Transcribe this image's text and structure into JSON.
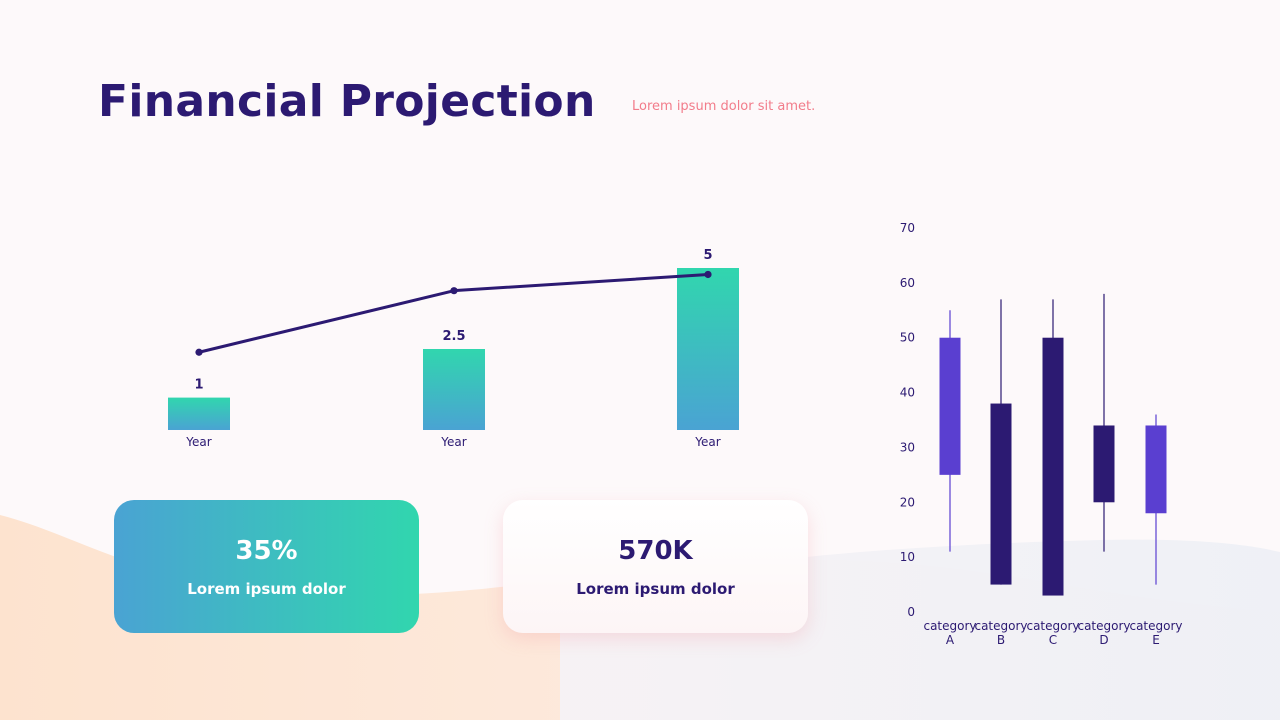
{
  "slide": {
    "title": "Financial Projection",
    "subtitle": "Lorem ipsum dolor sit amet."
  },
  "cards": [
    {
      "value": "35%",
      "label": "Lorem ipsum dolor"
    },
    {
      "value": "570K",
      "label": "Lorem ipsum dolor"
    }
  ],
  "colors": {
    "title": "#2c1a72",
    "subtitle": "#f27c8a",
    "bar_top": "#31d6ae",
    "bar_bottom": "#4aa3d3",
    "line": "#2c1a72",
    "candle_up": "#5a3fd0",
    "candle_down": "#2c1a72"
  },
  "chart_data": [
    {
      "type": "bar",
      "title": "",
      "categories": [
        "Year",
        "Year",
        "Year"
      ],
      "series": [
        {
          "name": "bars",
          "values": [
            1,
            2.5,
            5
          ]
        },
        {
          "name": "line",
          "values": [
            2.4,
            4.3,
            4.8
          ]
        }
      ],
      "value_labels": [
        "1",
        "2.5",
        "5"
      ],
      "ylim": [
        0,
        5
      ]
    },
    {
      "type": "candlestick",
      "categories": [
        {
          "line1": "category",
          "line2": "A"
        },
        {
          "line1": "category",
          "line2": "B"
        },
        {
          "line1": "category",
          "line2": "C"
        },
        {
          "line1": "category",
          "line2": "D"
        },
        {
          "line1": "category",
          "line2": "E"
        }
      ],
      "candles": [
        {
          "open": 25,
          "close": 50,
          "high": 55,
          "low": 11,
          "direction": "up"
        },
        {
          "open": 38,
          "close": 5,
          "high": 57,
          "low": 5,
          "direction": "down"
        },
        {
          "open": 50,
          "close": 3,
          "high": 57,
          "low": 3,
          "direction": "down"
        },
        {
          "open": 34,
          "close": 20,
          "high": 58,
          "low": 11,
          "direction": "down"
        },
        {
          "open": 18,
          "close": 34,
          "high": 36,
          "low": 5,
          "direction": "up"
        }
      ],
      "yticks": [
        "0",
        "10",
        "20",
        "30",
        "40",
        "50",
        "60",
        "70"
      ],
      "ylim": [
        0,
        70
      ]
    }
  ]
}
